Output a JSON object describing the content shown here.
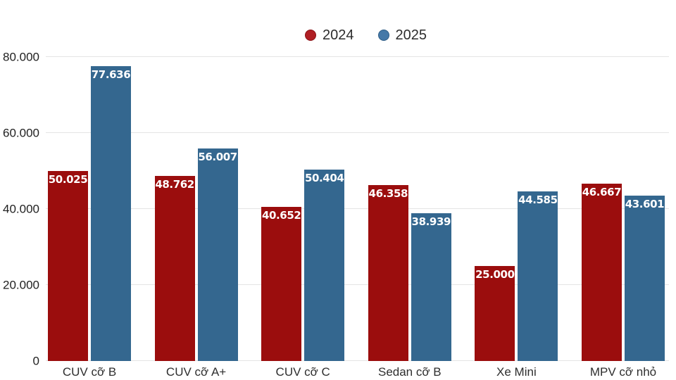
{
  "legend": {
    "items": [
      {
        "label": "2024",
        "dot_color": "#b01f24",
        "dot_border": "#8a1216"
      },
      {
        "label": "2025",
        "dot_color": "#4579a8",
        "dot_border": "#2e5d86"
      }
    ]
  },
  "colors": {
    "bar_2024": "#9b0d0d",
    "bar_2025": "#34678f",
    "gridline": "#e4e4e4",
    "axis_text": "#1f1f1f",
    "category_text": "#2e2e2e",
    "value_label_text": "#ffffff",
    "background": "#ffffff"
  },
  "chart_data": {
    "type": "bar",
    "title": "",
    "xlabel": "",
    "ylabel": "",
    "ylim": [
      0,
      80000
    ],
    "grid": true,
    "legend_position": "top-center",
    "categories": [
      "CUV cỡ B",
      "CUV cỡ A+",
      "CUV cỡ C",
      "Sedan cỡ B",
      "Xe Mini",
      "MPV cỡ nhỏ"
    ],
    "yticks": [
      {
        "value": 0,
        "label": "0"
      },
      {
        "value": 20000,
        "label": "20.000"
      },
      {
        "value": 40000,
        "label": "40.000"
      },
      {
        "value": 60000,
        "label": "60.000"
      },
      {
        "value": 80000,
        "label": "80.000"
      }
    ],
    "series": [
      {
        "name": "2024",
        "color": "#9b0d0d",
        "values": [
          50025,
          48762,
          40652,
          46358,
          25000,
          46667
        ],
        "labels": [
          "50.025",
          "48.762",
          "40.652",
          "46.358",
          "25.000",
          "46.667"
        ]
      },
      {
        "name": "2025",
        "color": "#34678f",
        "values": [
          77636,
          56007,
          50404,
          38939,
          44585,
          43601
        ],
        "labels": [
          "77.636",
          "56.007",
          "50.404",
          "38.939",
          "44.585",
          "43.601"
        ]
      }
    ]
  }
}
